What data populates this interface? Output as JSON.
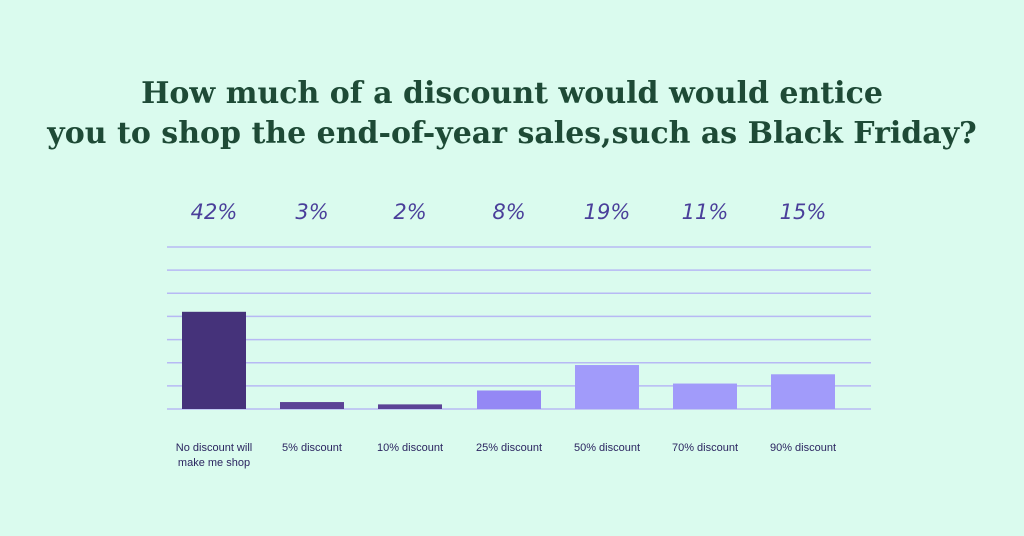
{
  "title_lines": [
    "How much of a discount would would entice",
    "you to shop the end-of-year sales,such as Black Friday?"
  ],
  "colors": {
    "background": "#DAFBEE",
    "title": "#1E4A36",
    "value_labels": "#4A3F9A",
    "category_labels": "#2B2560",
    "gridlines": "#B7B9F4"
  },
  "chart_data": {
    "type": "bar",
    "title": "How much of a discount would would entice you to shop the end-of-year sales,such as Black Friday?",
    "categories": [
      [
        "No discount will",
        "make me shop"
      ],
      [
        "5% discount"
      ],
      [
        "10% discount"
      ],
      [
        "25% discount"
      ],
      [
        "50% discount"
      ],
      [
        "70% discount"
      ],
      [
        "90% discount"
      ]
    ],
    "values": [
      42,
      3,
      2,
      8,
      19,
      11,
      15
    ],
    "value_labels": [
      "42%",
      "3%",
      "2%",
      "8%",
      "19%",
      "11%",
      "15%"
    ],
    "bar_colors": [
      "#45327A",
      "#5B4396",
      "#5B4396",
      "#9488F5",
      "#A19BFA",
      "#A19BFA",
      "#A19BFA"
    ],
    "ylim": [
      0,
      70
    ],
    "gridlines": 8,
    "grid": true
  }
}
